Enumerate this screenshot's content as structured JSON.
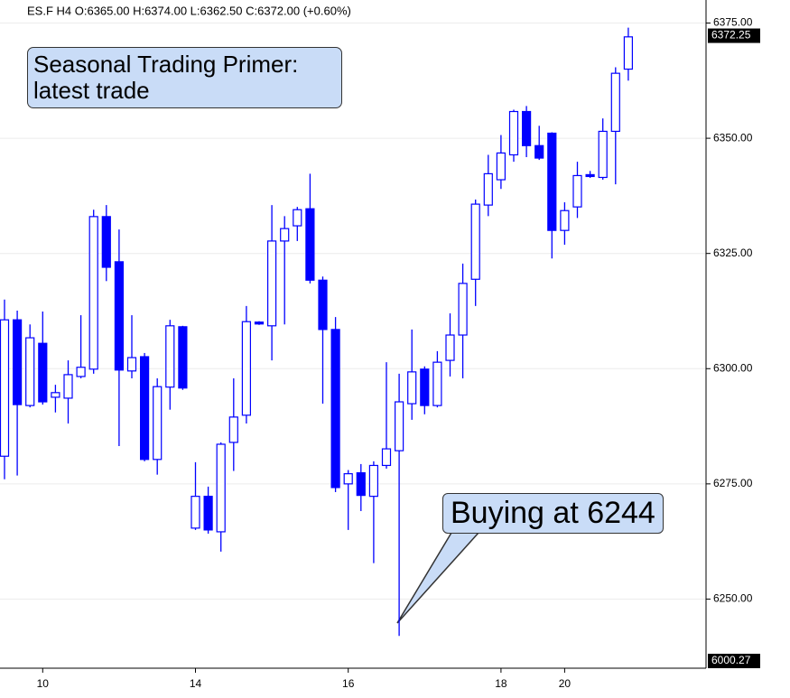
{
  "chart_data": {
    "type": "candlestick",
    "header": "ES.F  H4  O:6365.00  H:6374.00  L:6362.50  C:6372.00  (+0.60%)",
    "title": "Seasonal Trading Primer: latest trade",
    "annotation": "Buying at 6244",
    "categories": [
      null,
      null,
      null,
      "10",
      null,
      null,
      null,
      null,
      null,
      null,
      null,
      null,
      null,
      null,
      null,
      "14",
      null,
      null,
      null,
      null,
      null,
      null,
      null,
      null,
      null,
      null,
      null,
      "16",
      null,
      null,
      null,
      null,
      null,
      null,
      null,
      null,
      null,
      null,
      null,
      "18",
      null,
      null,
      null,
      null,
      "20",
      null,
      null,
      null,
      null,
      null
    ],
    "series": [
      {
        "color": "#0000ff",
        "open": [
          6281,
          6310.6,
          6292,
          6305.5,
          6293.8,
          6293.6,
          6298.3,
          6299.9,
          6333,
          6323.2,
          6299.5,
          6302.6,
          6280.3,
          6296,
          6309.1,
          6265.4,
          6272.3,
          6264.6,
          6284,
          6289.9,
          6310.1,
          6309.3,
          6327.7,
          6331,
          6334.7,
          6319.2,
          6308.5,
          6275,
          6277.4,
          6272.3,
          6279,
          6282.2,
          6292.4,
          6299.9,
          6292,
          6301.8,
          6307.3,
          6319.4,
          6335.5,
          6341,
          6346.4,
          6355.8,
          6348.4,
          6351.1,
          6330,
          6335.1,
          6342.1,
          6341.5,
          6351.5,
          6365
        ],
        "high": [
          6315,
          6312.6,
          6309.6,
          6312.4,
          6296.5,
          6301.8,
          6311.6,
          6334.5,
          6335.5,
          6330.2,
          6311.6,
          6303.4,
          6297.9,
          6310.6,
          6309.3,
          6279.7,
          6274.4,
          6284,
          6297.9,
          6313.6,
          6310.3,
          6335.5,
          6333.1,
          6335.1,
          6342.3,
          6320,
          6311.2,
          6278,
          6279.3,
          6279.9,
          6301.4,
          6298.9,
          6308.5,
          6300.5,
          6303.8,
          6312,
          6322.8,
          6336.7,
          6346.4,
          6350.7,
          6356.2,
          6357,
          6352.7,
          6351.3,
          6336.1,
          6344.9,
          6342.9,
          6354.3,
          6365.4,
          6374
        ],
        "low": [
          6276,
          6276.8,
          6291.6,
          6292.2,
          6290.5,
          6288.1,
          6297.9,
          6298.9,
          6319,
          6283.2,
          6297.9,
          6279.9,
          6277,
          6291.1,
          6295.4,
          6265,
          6264.2,
          6260.3,
          6277.8,
          6288.1,
          6309.5,
          6301.8,
          6309.6,
          6327.7,
          6318.5,
          6292.4,
          6273.2,
          6265,
          6269.1,
          6257.8,
          6278.3,
          6242,
          6288.9,
          6290.1,
          6291.6,
          6298.3,
          6297.9,
          6313.6,
          6333.1,
          6339,
          6344.9,
          6345.9,
          6345.3,
          6323.9,
          6326.9,
          6332.7,
          6341.4,
          6341,
          6340,
          6362.5
        ],
        "close": [
          6310.6,
          6292.2,
          6306.7,
          6292.8,
          6294.8,
          6298.7,
          6300.3,
          6333,
          6322,
          6299.7,
          6302.4,
          6280.3,
          6296.1,
          6309.3,
          6295.8,
          6272.3,
          6265,
          6283.6,
          6289.5,
          6310.2,
          6309.7,
          6327.7,
          6330.4,
          6334.5,
          6319.2,
          6308.5,
          6274.2,
          6277.2,
          6272.5,
          6279,
          6282.6,
          6292.8,
          6299.3,
          6292,
          6301.4,
          6307.3,
          6318.5,
          6335.7,
          6342.3,
          6346.8,
          6355.8,
          6348.4,
          6345.7,
          6330,
          6334.3,
          6341.9,
          6341.7,
          6351.5,
          6364.1,
          6372
        ]
      }
    ],
    "ylim": [
      6235,
      6380
    ],
    "yticks": [
      {
        "value": 6250,
        "label": "6250.00"
      },
      {
        "value": 6275,
        "label": "6275.00"
      },
      {
        "value": 6300,
        "label": "6300.00"
      },
      {
        "value": 6325,
        "label": "6325.00"
      },
      {
        "value": 6350,
        "label": "6350.00"
      },
      {
        "value": 6375,
        "label": "6375.00"
      }
    ],
    "last_price": {
      "value": 6372.25,
      "label": "6372.25"
    },
    "bottom_label": "6000.27",
    "grid": true
  }
}
